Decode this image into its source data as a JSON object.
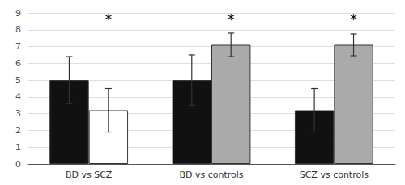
{
  "chart_data": {
    "type": "bar",
    "categories": [
      "BD vs SCZ",
      "BD vs controls",
      "SCZ vs controls"
    ],
    "series": [
      {
        "color": "#111111",
        "values": [
          5.0,
          5.0,
          3.2
        ],
        "errors": [
          1.4,
          1.5,
          1.3
        ]
      },
      {
        "colors": [
          "#ffffff",
          "#aaaaaa",
          "#aaaaaa"
        ],
        "values": [
          3.2,
          7.1,
          7.1
        ],
        "errors": [
          1.3,
          0.7,
          0.65
        ]
      }
    ],
    "ylim": [
      0,
      9
    ],
    "yticks": [
      0,
      1,
      2,
      3,
      4,
      5,
      6,
      7,
      8,
      9
    ],
    "grid": true,
    "annotations": [
      {
        "text": "*",
        "category": "BD vs SCZ",
        "y": 8.2
      },
      {
        "text": "*",
        "category": "BD vs controls",
        "y": 8.2
      },
      {
        "text": "*",
        "category": "SCZ vs controls",
        "y": 8.2
      }
    ]
  }
}
